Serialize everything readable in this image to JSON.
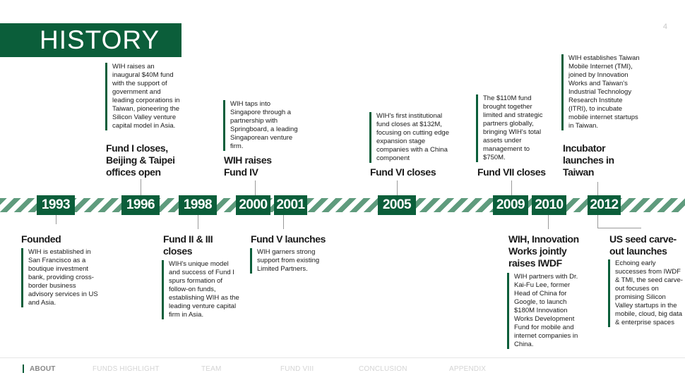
{
  "header": {
    "title": "HISTORY",
    "page_number": "4"
  },
  "timeline": {
    "years": [
      "1993",
      "1996",
      "1998",
      "2000",
      "2001",
      "2005",
      "2009",
      "2010",
      "2012"
    ],
    "events": {
      "e1993": {
        "title": "Founded",
        "desc": "WIH is established in San Francisco as a boutique investment bank, providing cross-border business advisory services in US and Asia."
      },
      "e1996": {
        "title": "Fund I closes, Beijing & Taipei offices open",
        "desc": "WIH raises an inaugural $40M fund with the support of government and leading corporations in Taiwan, pioneering the Silicon Valley venture capital model in Asia."
      },
      "e1998": {
        "title": "Fund II & III closes",
        "desc": "WIH's unique model and success of Fund I spurs formation of follow-on funds, establishing WIH as the leading venture capital firm in Asia."
      },
      "e2000": {
        "title": "WIH raises Fund IV",
        "desc": "WIH taps into Singapore through a partnership with Springboard, a leading Singaporean venture firm."
      },
      "e2001": {
        "title": "Fund V launches",
        "desc": "WIH garners strong support from existing Limited Partners."
      },
      "e2005": {
        "title": "Fund VI closes",
        "desc": "WIH's first institutional fund closes at $132M, focusing on cutting edge expansion stage companies with a China component"
      },
      "e2009": {
        "title": "Fund VII closes",
        "desc": "The $110M fund brought together limited and strategic partners globally, bringing WIH's total assets under management to $750M."
      },
      "e2010": {
        "title": "WIH, Innovation Works jointly raises IWDF",
        "desc": "WIH partners with Dr. Kai-Fu Lee, former Head of China for Google, to launch $180M Innovation Works Development Fund for mobile and internet companies in China."
      },
      "e2012a": {
        "title": "Incubator launches in Taiwan",
        "desc": "WIH establishes Taiwan Mobile Internet (TMI), joined by Innovation Works and Taiwan's Industrial Technology Research Institute (ITRI), to incubate mobile internet startups in Taiwan."
      },
      "e2012b": {
        "title": "US seed carve-out launches",
        "desc": "Echoing early successes from IWDF & TMI, the seed carve-out focuses on promising Silicon Valley startups in the mobile, cloud, big data & enterprise spaces"
      }
    }
  },
  "nav": {
    "items": [
      "ABOUT",
      "FUNDS HIGHLIGHT",
      "TEAM",
      "FUND VIII",
      "CONCLUSION",
      "APPENDIX"
    ]
  },
  "colors": {
    "brand_green": "#0b5e3a",
    "stripe_green": "#5f9b7d"
  }
}
